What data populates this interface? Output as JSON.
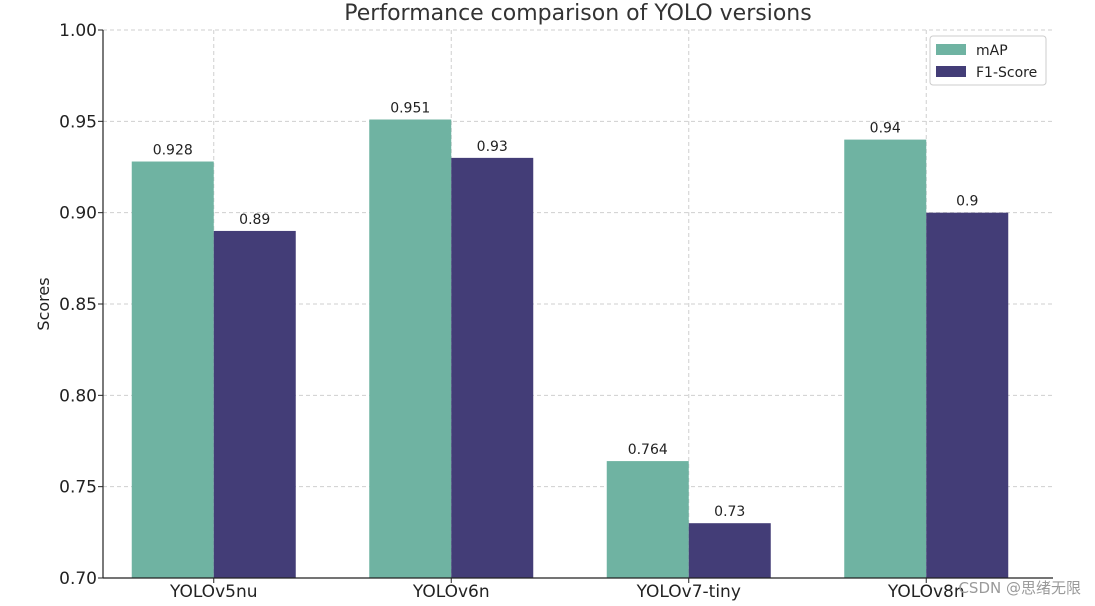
{
  "chart_data": {
    "type": "bar",
    "title": "Performance comparison of YOLO versions",
    "xlabel": "",
    "ylabel": "Scores",
    "categories": [
      "YOLOv5nu",
      "YOLOv6n",
      "YOLOv7-tiny",
      "YOLOv8n"
    ],
    "series": [
      {
        "name": "mAP",
        "values": [
          0.928,
          0.951,
          0.764,
          0.94
        ],
        "labels": [
          "0.928",
          "0.951",
          "0.764",
          "0.94"
        ],
        "color": "#6fb3a2"
      },
      {
        "name": "F1-Score",
        "values": [
          0.89,
          0.93,
          0.73,
          0.9
        ],
        "labels": [
          "0.89",
          "0.93",
          "0.73",
          "0.9"
        ],
        "color": "#433d77"
      }
    ],
    "ylim": [
      0.7,
      1.0
    ],
    "yticks": [
      "0.70",
      "0.75",
      "0.80",
      "0.85",
      "0.90",
      "0.95",
      "1.00"
    ],
    "grid": true,
    "legend_position": "top-right"
  },
  "watermark": "CSDN @思绪无限"
}
